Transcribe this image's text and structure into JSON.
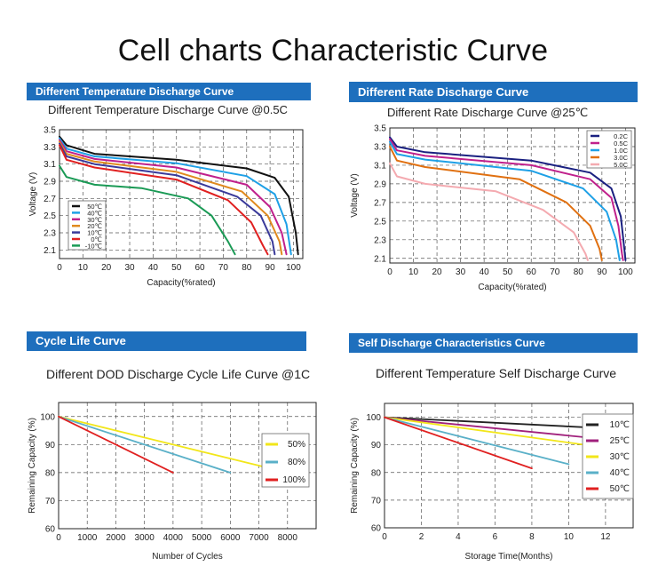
{
  "page_title": "Cell charts Characteristic Curve",
  "colors": {
    "header_blue": "#1e6fbd"
  },
  "chart_data": [
    {
      "id": "temp",
      "header": "Different Temperature Discharge Curve",
      "title": "Different Temperature Discharge Curve @0.5C",
      "type": "line",
      "xlabel": "Capacity(%rated)",
      "ylabel": "Voltage (V)",
      "xlim": [
        0,
        104
      ],
      "ylim": [
        2.0,
        3.5
      ],
      "xticks": [
        "0",
        "10",
        "20",
        "30",
        "40",
        "50",
        "60",
        "70",
        "80",
        "90",
        "100"
      ],
      "yticks": [
        "2.1",
        "2.3",
        "2.5",
        "2.7",
        "2.9",
        "3.1",
        "3.3",
        "3.5"
      ],
      "legend": "left",
      "series": [
        {
          "name": "50℃",
          "color": "#111111",
          "points": [
            [
              0,
              3.42
            ],
            [
              3,
              3.32
            ],
            [
              15,
              3.22
            ],
            [
              50,
              3.15
            ],
            [
              80,
              3.05
            ],
            [
              92,
              2.94
            ],
            [
              98,
              2.72
            ],
            [
              101,
              2.3
            ],
            [
              102,
              2.05
            ]
          ]
        },
        {
          "name": "40℃",
          "color": "#1ea0e6",
          "points": [
            [
              0,
              3.4
            ],
            [
              3,
              3.28
            ],
            [
              15,
              3.19
            ],
            [
              50,
              3.11
            ],
            [
              80,
              2.96
            ],
            [
              92,
              2.75
            ],
            [
              97,
              2.4
            ],
            [
              99,
              2.05
            ]
          ]
        },
        {
          "name": "30℃",
          "color": "#c0208c",
          "points": [
            [
              0,
              3.38
            ],
            [
              3,
              3.25
            ],
            [
              15,
              3.16
            ],
            [
              50,
              3.06
            ],
            [
              80,
              2.86
            ],
            [
              90,
              2.6
            ],
            [
              95,
              2.3
            ],
            [
              97,
              2.05
            ]
          ]
        },
        {
          "name": "20℃",
          "color": "#e08a1e",
          "points": [
            [
              0,
              3.36
            ],
            [
              3,
              3.22
            ],
            [
              15,
              3.13
            ],
            [
              50,
              3.01
            ],
            [
              78,
              2.78
            ],
            [
              89,
              2.5
            ],
            [
              94,
              2.2
            ],
            [
              95,
              2.05
            ]
          ]
        },
        {
          "name": "10℃",
          "color": "#3a3a9a",
          "points": [
            [
              0,
              3.34
            ],
            [
              3,
              3.19
            ],
            [
              15,
              3.1
            ],
            [
              50,
              2.97
            ],
            [
              76,
              2.72
            ],
            [
              86,
              2.5
            ],
            [
              91,
              2.2
            ],
            [
              92,
              2.05
            ]
          ]
        },
        {
          "name": "0℃",
          "color": "#e02020",
          "points": [
            [
              0,
              3.32
            ],
            [
              3,
              3.15
            ],
            [
              15,
              3.06
            ],
            [
              50,
              2.92
            ],
            [
              72,
              2.68
            ],
            [
              82,
              2.42
            ],
            [
              87,
              2.15
            ],
            [
              89,
              2.05
            ]
          ]
        },
        {
          "name": "-10℃",
          "color": "#1a9a55",
          "points": [
            [
              0,
              3.08
            ],
            [
              3,
              2.95
            ],
            [
              15,
              2.86
            ],
            [
              35,
              2.82
            ],
            [
              55,
              2.7
            ],
            [
              65,
              2.5
            ],
            [
              72,
              2.2
            ],
            [
              75,
              2.05
            ]
          ]
        }
      ]
    },
    {
      "id": "rate",
      "header": "Different Rate Discharge Curve",
      "title": "Different Rate Discharge Curve @25℃",
      "type": "line",
      "xlabel": "Capacity(%rated)",
      "ylabel": "Voltage (V)",
      "xlim": [
        0,
        104
      ],
      "ylim": [
        2.05,
        3.5
      ],
      "xticks": [
        "0",
        "10",
        "20",
        "30",
        "40",
        "50",
        "60",
        "70",
        "80",
        "90",
        "100"
      ],
      "yticks": [
        "2.1",
        "2.3",
        "2.5",
        "2.7",
        "2.9",
        "3.1",
        "3.3",
        "3.5"
      ],
      "legend": "top-right",
      "series": [
        {
          "name": "0.2C",
          "color": "#1a2080",
          "points": [
            [
              0,
              3.4
            ],
            [
              3,
              3.3
            ],
            [
              15,
              3.24
            ],
            [
              60,
              3.15
            ],
            [
              85,
              3.02
            ],
            [
              94,
              2.85
            ],
            [
              98,
              2.55
            ],
            [
              99.5,
              2.2
            ],
            [
              100,
              2.08
            ]
          ]
        },
        {
          "name": "0.5C",
          "color": "#c0208c",
          "points": [
            [
              0,
              3.38
            ],
            [
              3,
              3.26
            ],
            [
              15,
              3.2
            ],
            [
              60,
              3.1
            ],
            [
              85,
              2.95
            ],
            [
              94,
              2.75
            ],
            [
              97,
              2.45
            ],
            [
              98.5,
              2.15
            ],
            [
              99,
              2.08
            ]
          ]
        },
        {
          "name": "1.0C",
          "color": "#1ea0e6",
          "points": [
            [
              0,
              3.35
            ],
            [
              3,
              3.22
            ],
            [
              15,
              3.16
            ],
            [
              60,
              3.04
            ],
            [
              82,
              2.85
            ],
            [
              92,
              2.6
            ],
            [
              96,
              2.3
            ],
            [
              97.5,
              2.08
            ]
          ]
        },
        {
          "name": "3.0C",
          "color": "#e07010",
          "points": [
            [
              0,
              3.3
            ],
            [
              3,
              3.15
            ],
            [
              15,
              3.08
            ],
            [
              55,
              2.95
            ],
            [
              75,
              2.7
            ],
            [
              85,
              2.45
            ],
            [
              89,
              2.2
            ],
            [
              90,
              2.08
            ]
          ]
        },
        {
          "name": "5.0C",
          "color": "#f4aab0",
          "points": [
            [
              0,
              3.12
            ],
            [
              3,
              2.98
            ],
            [
              15,
              2.9
            ],
            [
              45,
              2.82
            ],
            [
              65,
              2.62
            ],
            [
              78,
              2.38
            ],
            [
              83,
              2.15
            ],
            [
              84,
              2.08
            ]
          ]
        }
      ]
    },
    {
      "id": "cycle",
      "header": "Cycle Life Curve",
      "title": "Different DOD Discharge Cycle Life Curve @1C",
      "type": "line",
      "xlabel": "Number of Cycles",
      "ylabel": "Remaining Capacity (%)",
      "xlim": [
        0,
        9000
      ],
      "ylim": [
        60,
        105
      ],
      "xticks": [
        "0",
        "1000",
        "2000",
        "3000",
        "4000",
        "5000",
        "6000",
        "7000",
        "8000"
      ],
      "yticks": [
        "60",
        "70",
        "80",
        "90",
        "100"
      ],
      "legend": "right",
      "series": [
        {
          "name": "50%",
          "color": "#f2e61a",
          "points": [
            [
              0,
              100
            ],
            [
              8000,
              80
            ]
          ]
        },
        {
          "name": "80%",
          "color": "#5ab0c8",
          "points": [
            [
              0,
              100
            ],
            [
              6000,
              80
            ]
          ]
        },
        {
          "name": "100%",
          "color": "#e02020",
          "points": [
            [
              0,
              100
            ],
            [
              4000,
              80
            ]
          ]
        }
      ]
    },
    {
      "id": "self",
      "header": "Self Discharge Characteristics Curve",
      "title": "Different Temperature Self Discharge Curve",
      "type": "line",
      "xlabel": "Storage Time(Months)",
      "ylabel": "Remaining Capacity (%)",
      "xlim": [
        0,
        13.5
      ],
      "ylim": [
        60,
        105
      ],
      "xticks": [
        "0",
        "2",
        "4",
        "6",
        "8",
        "10",
        "12"
      ],
      "yticks": [
        "60",
        "70",
        "80",
        "90",
        "100"
      ],
      "legend": "right",
      "series": [
        {
          "name": "10℃",
          "color": "#222222",
          "points": [
            [
              0,
              100
            ],
            [
              12,
              96
            ]
          ]
        },
        {
          "name": "25℃",
          "color": "#a0207c",
          "points": [
            [
              0,
              100
            ],
            [
              12,
              92
            ]
          ]
        },
        {
          "name": "30℃",
          "color": "#f2e61a",
          "points": [
            [
              0,
              100
            ],
            [
              12,
              89
            ]
          ]
        },
        {
          "name": "40℃",
          "color": "#5ab0c8",
          "points": [
            [
              0,
              100
            ],
            [
              10,
              83
            ]
          ]
        },
        {
          "name": "50℃",
          "color": "#e02020",
          "points": [
            [
              0,
              100
            ],
            [
              8,
              81.5
            ]
          ]
        }
      ]
    }
  ]
}
